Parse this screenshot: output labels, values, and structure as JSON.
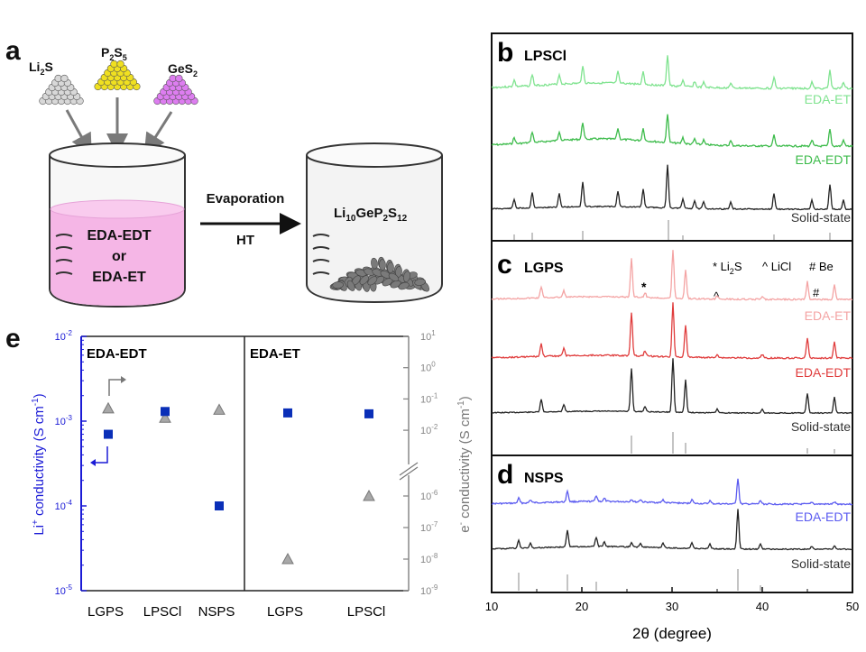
{
  "colors": {
    "lpsci_eda_et": "#7fe38f",
    "lpsci_eda_edt": "#3cbb4a",
    "lgps_eda_et": "#f4a4a4",
    "lgps_eda_edt": "#e03c3c",
    "nsps_eda_edt": "#5a5af0",
    "solid": "#222222",
    "li_axis": "#1b1bd6",
    "e_axis": "#777777",
    "li_marker": "#0a2fb8",
    "e_marker": "#a8a8a8",
    "liquid": "#f5b6e6",
    "li2s": "#d8d8d8",
    "p2s5": "#f0e020",
    "ges2": "#dd7df0"
  },
  "panel_a": {
    "letter": "a",
    "precursors": [
      {
        "base": "Li",
        "sub": "2",
        "base2": "S",
        "sub2": ""
      },
      {
        "base": "P",
        "sub": "2",
        "base2": "S",
        "sub2": "5"
      },
      {
        "base": "GeS",
        "sub": "2",
        "base2": "",
        "sub2": ""
      }
    ],
    "solvent_line1": "EDA-EDT",
    "solvent_line2": "or",
    "solvent_line3": "EDA-ET",
    "arrow_top": "Evaporation",
    "arrow_bottom": "HT",
    "product": {
      "p1": "Li",
      "s1": "10",
      "p2": "GeP",
      "s2": "2",
      "p3": "S",
      "s3": "12"
    }
  },
  "panel_b": {
    "letter": "b",
    "label": "LPSCl",
    "traces": [
      "EDA-ET",
      "EDA-EDT",
      "Solid-state"
    ]
  },
  "panel_c": {
    "letter": "c",
    "label": "LGPS",
    "traces": [
      "EDA-ET",
      "EDA-EDT",
      "Solid-state"
    ],
    "legend": {
      "star": "* Li",
      "star_sub": "2",
      "star_end": "S",
      "caret": "^ LiCl",
      "hash": "# Be"
    },
    "marks": {
      "star": "*",
      "caret": "^",
      "hash": "#"
    }
  },
  "panel_d": {
    "letter": "d",
    "label": "NSPS",
    "traces": [
      "EDA-EDT",
      "Solid-state"
    ]
  },
  "xrd_axis": {
    "ticks": [
      "10",
      "20",
      "30",
      "40",
      "50"
    ],
    "label": "2θ (degree)",
    "xlim": [
      10,
      50
    ]
  },
  "panel_e": {
    "letter": "e",
    "groups": [
      "EDA-EDT",
      "EDA-ET"
    ],
    "categories": [
      "LGPS",
      "LPSCl",
      "NSPS",
      "LGPS",
      "LPSCl"
    ],
    "left_ticks": [
      {
        "b": "10",
        "e": "-2"
      },
      {
        "b": "10",
        "e": "-3"
      },
      {
        "b": "10",
        "e": "-4"
      },
      {
        "b": "10",
        "e": "-5"
      }
    ],
    "right_ticks": [
      {
        "b": "10",
        "e": "1"
      },
      {
        "b": "10",
        "e": "0"
      },
      {
        "b": "10",
        "e": "-1"
      },
      {
        "b": "10",
        "e": "-2"
      },
      {
        "b": "10",
        "e": "-6"
      },
      {
        "b": "10",
        "e": "-7"
      },
      {
        "b": "10",
        "e": "-8"
      },
      {
        "b": "10",
        "e": "-9"
      }
    ],
    "left_label": {
      "a": "Li",
      "sup": "+",
      "b": " conductivity (S cm",
      "sup2": "-1",
      "c": ")"
    },
    "right_label": {
      "a": "e",
      "sup": "-",
      "b": " conductivity (S cm",
      "sup2": "-1",
      "c": ")"
    }
  },
  "chart_data": {
    "type": "scatter",
    "title": "",
    "categories": [
      "LGPS (EDA-EDT)",
      "LPSCl (EDA-EDT)",
      "NSPS (EDA-EDT)",
      "LGPS (EDA-ET)",
      "LPSCl (EDA-ET)"
    ],
    "series": [
      {
        "name": "Li+ conductivity (S cm-1)",
        "axis": "left",
        "marker": "square",
        "values": [
          0.0007,
          0.0013,
          0.0001,
          0.00125,
          0.00122
        ]
      },
      {
        "name": "e- conductivity (S cm-1)",
        "axis": "right",
        "marker": "triangle",
        "values": [
          0.05,
          0.025,
          0.045,
          1e-08,
          1e-06
        ]
      }
    ],
    "ylabel_left": "Li+ conductivity (S cm-1)",
    "ylabel_right": "e- conductivity (S cm-1)",
    "ylim_left": [
      1e-05,
      0.01
    ],
    "ylim_right": [
      1e-09,
      10
    ],
    "yscale": "log",
    "right_axis_break": [
      0.01,
      1e-06
    ]
  }
}
